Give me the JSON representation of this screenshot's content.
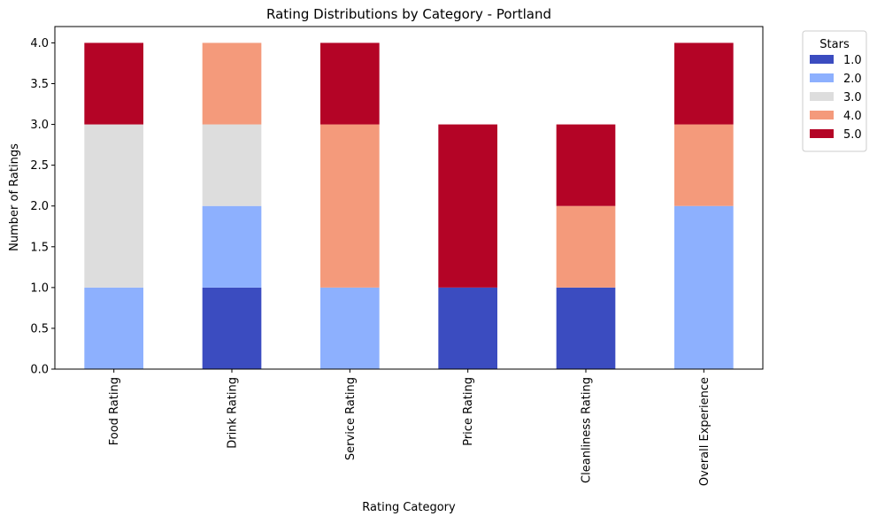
{
  "chart_data": {
    "type": "bar",
    "stacked": true,
    "title": "Rating Distributions by Category - Portland",
    "xlabel": "Rating Category",
    "ylabel": "Number of Ratings",
    "ylim": [
      0,
      4.2
    ],
    "yticks": [
      "0.0",
      "0.5",
      "1.0",
      "1.5",
      "2.0",
      "2.5",
      "3.0",
      "3.5",
      "4.0"
    ],
    "categories": [
      "Food Rating",
      "Drink Rating",
      "Service Rating",
      "Price Rating",
      "Cleanliness Rating",
      "Overall Experience"
    ],
    "grid": false,
    "legend": {
      "title": "Stars",
      "placement": "outside top-right"
    },
    "series": [
      {
        "name": "1.0",
        "color": "#3b4cc0",
        "values": [
          0,
          1,
          0,
          1,
          1,
          0
        ]
      },
      {
        "name": "2.0",
        "color": "#8db0fe",
        "values": [
          1,
          1,
          1,
          0,
          0,
          2
        ]
      },
      {
        "name": "3.0",
        "color": "#dddddd",
        "values": [
          2,
          1,
          0,
          0,
          0,
          0
        ]
      },
      {
        "name": "4.0",
        "color": "#f49a7b",
        "values": [
          0,
          1,
          2,
          0,
          1,
          1
        ]
      },
      {
        "name": "5.0",
        "color": "#b40426",
        "values": [
          1,
          0,
          1,
          2,
          1,
          1
        ]
      }
    ]
  }
}
